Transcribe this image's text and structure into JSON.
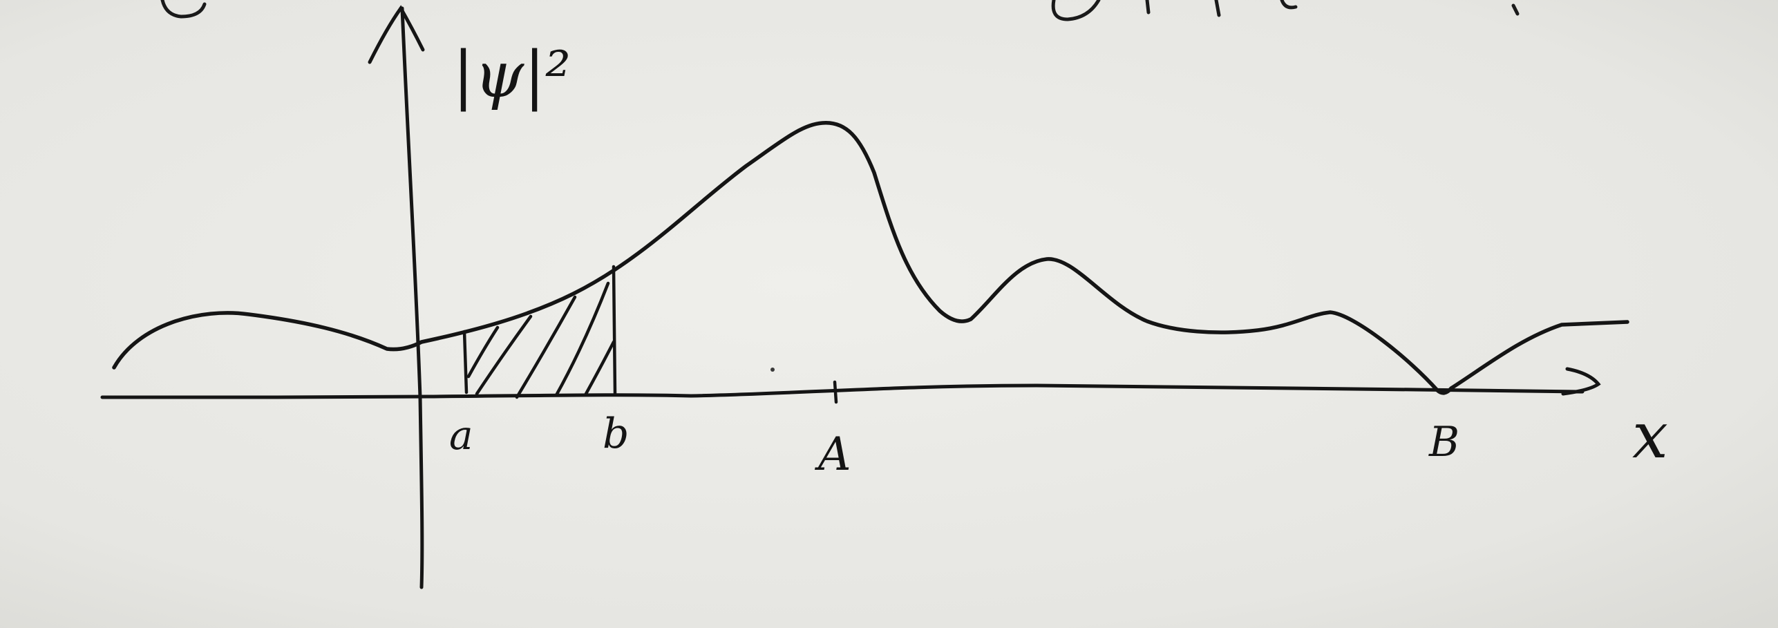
{
  "sketch": {
    "curve_label": "|ψ|²",
    "x_axis_label": "x",
    "tick_labels": {
      "a": "a",
      "b": "b",
      "A": "A",
      "B": "B"
    },
    "ink_color": "#151515",
    "paper_color": "#e9e9e5"
  }
}
